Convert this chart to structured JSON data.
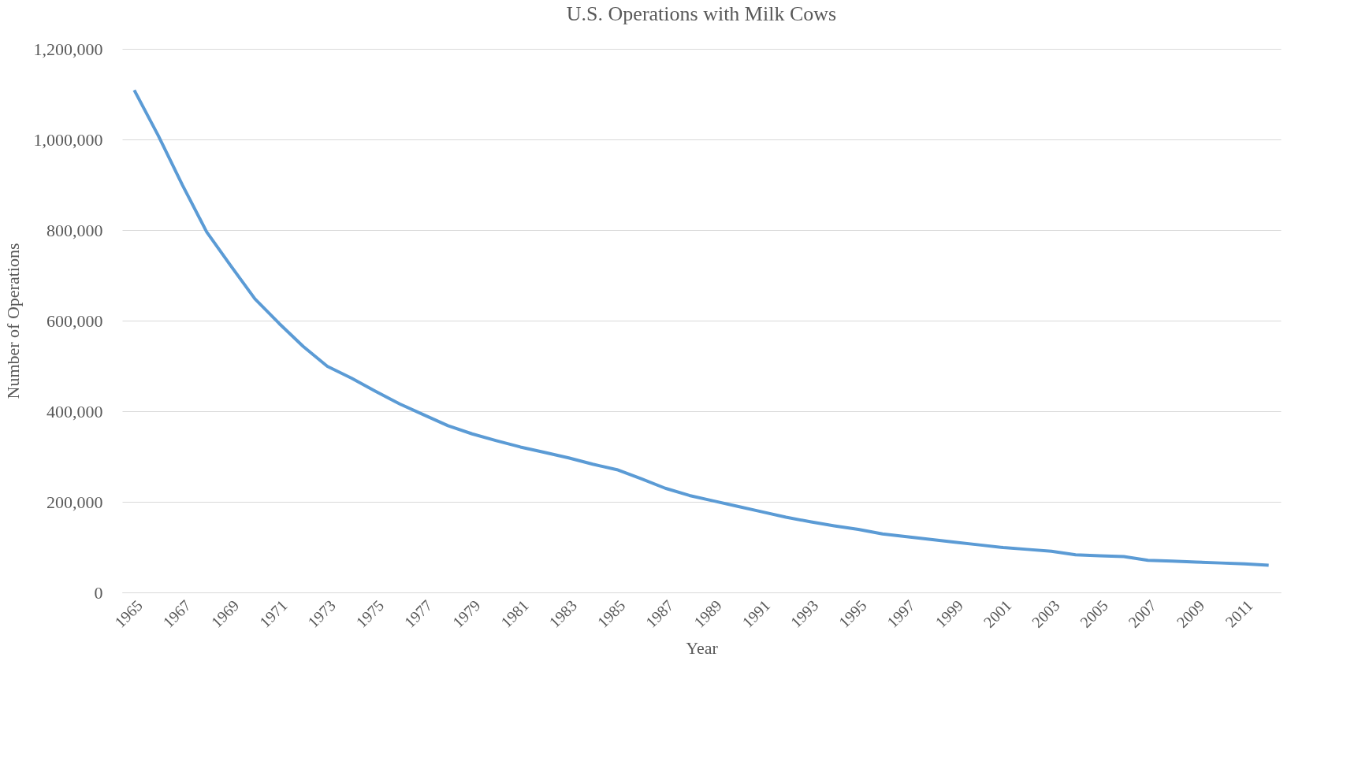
{
  "chart_data": {
    "type": "line",
    "title": "U.S. Operations with Milk Cows",
    "xlabel": "Year",
    "ylabel": "Number of Operations",
    "categories": [
      "1965",
      null,
      "1967",
      null,
      "1969",
      null,
      "1971",
      null,
      "1973",
      null,
      "1975",
      null,
      "1977",
      null,
      "1979",
      null,
      "1981",
      null,
      "1983",
      null,
      "1985",
      null,
      "1987",
      null,
      "1989",
      null,
      "1991",
      null,
      "1993",
      null,
      "1995",
      null,
      "1997",
      null,
      "1999",
      null,
      "2001",
      null,
      "2003",
      null,
      "2005",
      null,
      "2007",
      null,
      "2009",
      null,
      "2011",
      null
    ],
    "series": [
      {
        "color": "#5b9bd5",
        "values": [
          1109000,
          1008000,
          899000,
          796000,
          721000,
          648000,
          594000,
          543000,
          499000,
          473000,
          444000,
          416000,
          392000,
          368000,
          350000,
          335000,
          321000,
          309000,
          297000,
          283000,
          271000,
          251000,
          230000,
          214000,
          202000,
          190000,
          178000,
          166000,
          156000,
          147000,
          139000,
          129000,
          123000,
          117000,
          111000,
          105000,
          99000,
          95000,
          91000,
          83000,
          81000,
          79000,
          71000,
          69000,
          67000,
          65000,
          63000,
          60000
        ]
      }
    ],
    "ylim": [
      0,
      1200000
    ],
    "yticks": [
      0,
      {
        "value": 200000,
        "label": "200,000"
      },
      {
        "value": 400000,
        "label": "400,000"
      },
      {
        "value": 600000,
        "label": "600,000"
      },
      {
        "value": 800000,
        "label": "800,000"
      },
      {
        "value": 1000000,
        "label": "1,000,000"
      },
      {
        "value": 1200000,
        "label": "1,200,000"
      }
    ],
    "grid": "y",
    "marker": "none",
    "line_style": "solid"
  }
}
